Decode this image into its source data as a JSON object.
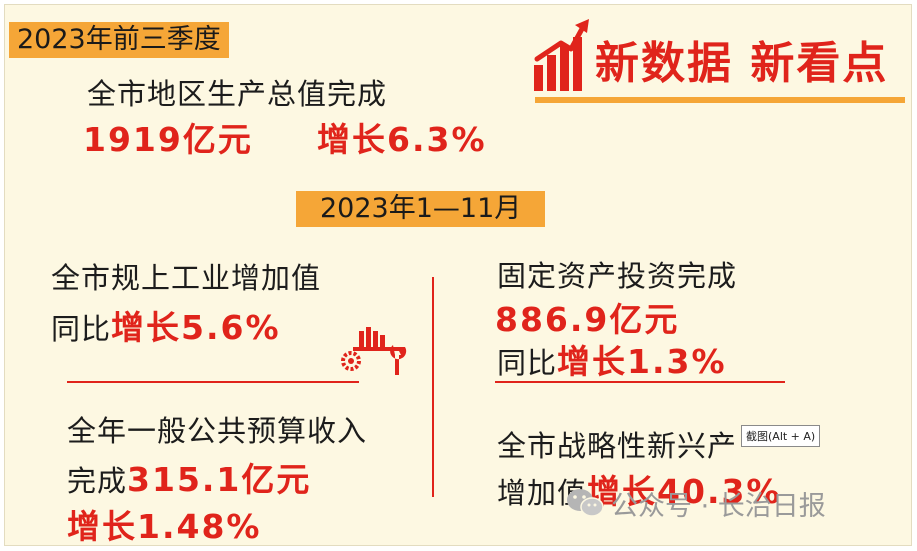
{
  "header": {
    "period_tag": "2023年前三季度",
    "gdp_label": "全市地区生产总值完成",
    "gdp_value": "1919亿元",
    "gdp_growth": "增长6.3%"
  },
  "brand": {
    "title": "新数据  新看点",
    "icon": "rising-bar-chart-arrow-icon"
  },
  "period2_tag": "2023年1—11月",
  "industry": {
    "label": "全市规上工业增加值",
    "prefix": "同比",
    "growth": "增长5.6%",
    "icon": "factory-gear-wrench-icon"
  },
  "investment": {
    "label": "固定资产投资完成",
    "value": "886.9亿元",
    "prefix": "同比",
    "growth": "增长1.3%"
  },
  "budget": {
    "label": "全年一般公共预算收入",
    "prefix": "完成",
    "value": "315.1亿元",
    "growth": "增长1.48%"
  },
  "strategic": {
    "label": "全市战略性新兴产",
    "prefix": "增加值",
    "growth": "增长40.3%"
  },
  "tooltip": "截图(Alt + A)",
  "watermark": {
    "text": "公众号 · 长治日报",
    "icon": "wechat-icon"
  },
  "colors": {
    "accent_red": "#e0241b",
    "accent_orange": "#f5a637",
    "background": "#fdf8e2"
  }
}
